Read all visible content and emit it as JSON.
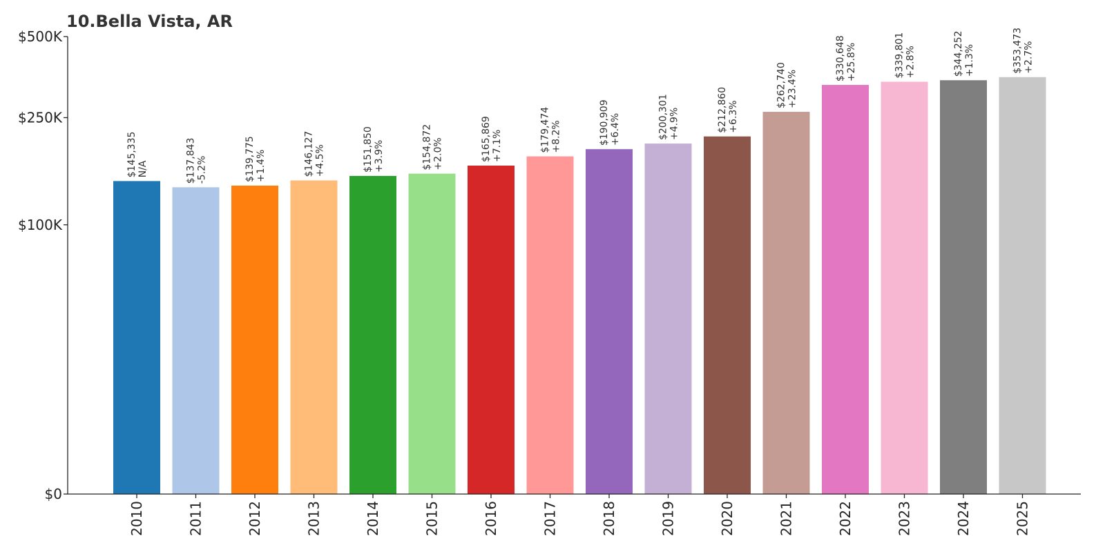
{
  "chart_data": {
    "type": "bar",
    "title": "10.Bella Vista, AR",
    "xlabel": "",
    "ylabel": "",
    "categories": [
      "2010",
      "2011",
      "2012",
      "2013",
      "2014",
      "2015",
      "2016",
      "2017",
      "2018",
      "2019",
      "2020",
      "2021",
      "2022",
      "2023",
      "2024",
      "2025"
    ],
    "values": [
      145335,
      137843,
      139775,
      146127,
      151850,
      154872,
      165869,
      179474,
      190909,
      200301,
      212860,
      262740,
      330648,
      339801,
      344252,
      353473
    ],
    "value_labels": [
      "$145,335",
      "$137,843",
      "$139,775",
      "$146,127",
      "$151,850",
      "$154,872",
      "$165,869",
      "$179,474",
      "$190,909",
      "$200,301",
      "$212,860",
      "$262,740",
      "$330,648",
      "$339,801",
      "$344,252",
      "$353,473"
    ],
    "change_labels": [
      "N/A",
      "-5.2%",
      "+1.4%",
      "+4.5%",
      "+3.9%",
      "+2.0%",
      "+7.1%",
      "+8.2%",
      "+6.4%",
      "+4.9%",
      "+6.3%",
      "+23.4%",
      "+25.8%",
      "+2.8%",
      "+1.3%",
      "+2.7%"
    ],
    "colors": [
      "#1f77b4",
      "#aec7e8",
      "#ff7f0e",
      "#ffbb78",
      "#2ca02c",
      "#98df8a",
      "#d62728",
      "#ff9896",
      "#9467bd",
      "#c5b0d5",
      "#8c564b",
      "#c49c94",
      "#e377c2",
      "#f7b6d2",
      "#7f7f7f",
      "#c7c7c7"
    ],
    "ylim": [
      0,
      500000
    ],
    "y_ticks": [
      {
        "value": 0,
        "label": "$0"
      },
      {
        "value": 100000,
        "label": "$100K"
      },
      {
        "value": 250000,
        "label": "$250K"
      },
      {
        "value": 500000,
        "label": "$500K"
      }
    ],
    "y_scale": "symlog",
    "grid": false,
    "legend": "none"
  }
}
